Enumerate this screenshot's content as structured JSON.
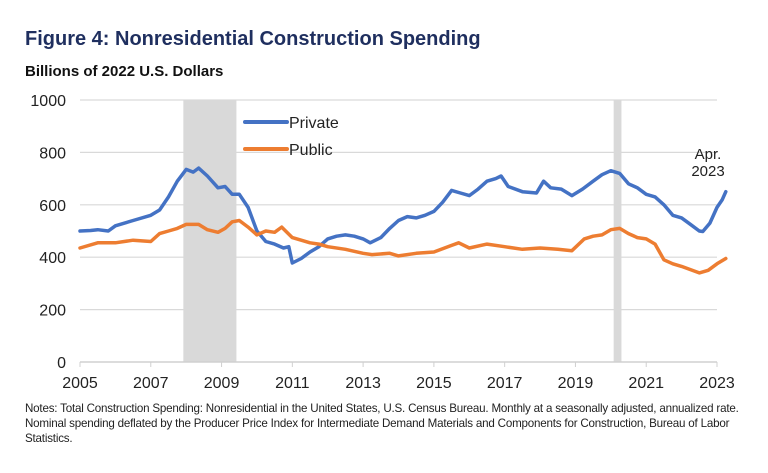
{
  "header": {
    "title": "Figure 4: Nonresidential Construction Spending",
    "subtitle": "Billions of 2022 U.S. Dollars"
  },
  "notes": "Notes: Total Construction Spending: Nonresidential in the United States, U.S. Census Bureau. Monthly at a seasonally adjusted, annualized rate. Nominal spending deflated by the Producer Price Index for Intermediate Demand Materials and Components for Construction, Bureau of Labor Statistics.",
  "colors": {
    "private": "#4472c4",
    "public": "#ed7d31",
    "recession": "#d9d9d9",
    "grid": "#d9d9d9",
    "title": "#1f2f5f"
  },
  "chart_data": {
    "type": "line",
    "title": "Figure 4: Nonresidential Construction Spending",
    "subtitle": "Billions of 2022 U.S. Dollars",
    "xlabel": "",
    "ylabel": "Billions of 2022 U.S. Dollars",
    "xlim": [
      2005,
      2023
    ],
    "ylim": [
      0,
      1000
    ],
    "yticks": [
      0,
      200,
      400,
      600,
      800,
      1000
    ],
    "xticks": [
      2005,
      2007,
      2009,
      2011,
      2013,
      2015,
      2017,
      2019,
      2021,
      2023
    ],
    "grid": true,
    "legend": {
      "placement": "top-center",
      "entries": [
        "Private",
        "Public"
      ]
    },
    "annotations": [
      {
        "text_lines": [
          "Apr.",
          "2023"
        ],
        "x": 2023.25
      }
    ],
    "shaded_periods": [
      {
        "label": "recession",
        "start": 2007.92,
        "end": 2009.42
      },
      {
        "label": "recession",
        "start": 2020.08,
        "end": 2020.3
      }
    ],
    "series": [
      {
        "name": "Private",
        "x": [
          2005.0,
          2005.3,
          2005.5,
          2005.8,
          2006.0,
          2006.5,
          2007.0,
          2007.25,
          2007.5,
          2007.75,
          2008.0,
          2008.2,
          2008.35,
          2008.6,
          2008.9,
          2009.1,
          2009.3,
          2009.5,
          2009.75,
          2010.0,
          2010.25,
          2010.5,
          2010.75,
          2010.9,
          2011.0,
          2011.25,
          2011.5,
          2011.75,
          2012.0,
          2012.25,
          2012.5,
          2012.75,
          2013.0,
          2013.2,
          2013.5,
          2013.75,
          2014.0,
          2014.25,
          2014.5,
          2014.75,
          2015.0,
          2015.25,
          2015.5,
          2015.75,
          2016.0,
          2016.25,
          2016.5,
          2016.75,
          2016.9,
          2017.1,
          2017.5,
          2017.9,
          2018.1,
          2018.3,
          2018.6,
          2018.9,
          2019.2,
          2019.5,
          2019.75,
          2020.0,
          2020.25,
          2020.5,
          2020.75,
          2021.0,
          2021.25,
          2021.5,
          2021.75,
          2022.0,
          2022.25,
          2022.5,
          2022.6,
          2022.8,
          2023.0,
          2023.15,
          2023.25
        ],
        "values": [
          500,
          502,
          505,
          500,
          520,
          540,
          560,
          580,
          630,
          690,
          735,
          725,
          740,
          710,
          665,
          670,
          640,
          640,
          590,
          500,
          460,
          450,
          435,
          440,
          378,
          395,
          420,
          440,
          470,
          480,
          485,
          480,
          470,
          455,
          475,
          510,
          540,
          555,
          550,
          560,
          575,
          610,
          655,
          645,
          635,
          660,
          690,
          700,
          710,
          670,
          650,
          645,
          690,
          665,
          660,
          635,
          660,
          690,
          715,
          730,
          720,
          680,
          665,
          640,
          630,
          600,
          560,
          550,
          525,
          500,
          498,
          530,
          590,
          620,
          650
        ]
      },
      {
        "name": "Public",
        "x": [
          2005.0,
          2005.5,
          2006.0,
          2006.5,
          2007.0,
          2007.25,
          2007.5,
          2007.75,
          2008.0,
          2008.35,
          2008.6,
          2008.9,
          2009.1,
          2009.3,
          2009.5,
          2009.75,
          2010.0,
          2010.25,
          2010.5,
          2010.7,
          2011.0,
          2011.25,
          2011.5,
          2011.75,
          2012.0,
          2012.5,
          2013.0,
          2013.25,
          2013.75,
          2014.0,
          2014.5,
          2015.0,
          2015.5,
          2015.7,
          2016.0,
          2016.5,
          2017.0,
          2017.5,
          2018.0,
          2018.5,
          2018.9,
          2019.25,
          2019.5,
          2019.75,
          2020.0,
          2020.25,
          2020.5,
          2020.75,
          2021.0,
          2021.25,
          2021.5,
          2021.75,
          2022.0,
          2022.5,
          2022.75,
          2023.0,
          2023.25
        ],
        "values": [
          435,
          455,
          455,
          465,
          460,
          490,
          500,
          510,
          525,
          525,
          505,
          495,
          510,
          535,
          540,
          515,
          485,
          500,
          495,
          515,
          475,
          465,
          455,
          450,
          440,
          430,
          415,
          410,
          415,
          405,
          415,
          420,
          445,
          455,
          435,
          450,
          440,
          430,
          435,
          430,
          425,
          470,
          480,
          485,
          505,
          510,
          490,
          475,
          470,
          450,
          390,
          375,
          365,
          340,
          350,
          375,
          395
        ]
      }
    ]
  }
}
